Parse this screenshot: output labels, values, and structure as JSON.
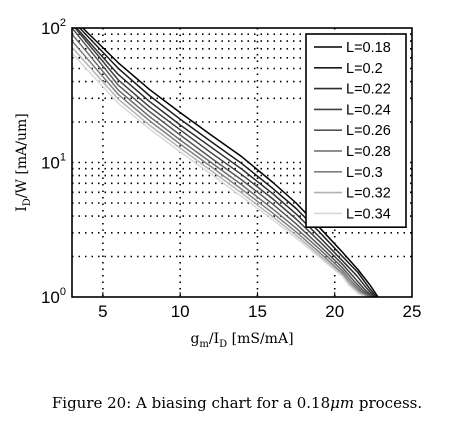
{
  "chart_data": {
    "type": "line",
    "title": "",
    "xlabel": "g_m/I_D [mS/mA]",
    "ylabel": "I_D/W [mA/um]",
    "xlim": [
      3,
      25
    ],
    "ylim": [
      1,
      100
    ],
    "yscale": "log",
    "grid": true,
    "legend_position": "top-right",
    "x_ticks": [
      "5",
      "10",
      "15",
      "20",
      "25"
    ],
    "y_ticks": [
      "10^0",
      "10^1",
      "10^2"
    ],
    "series": [
      {
        "name": "L=0.18",
        "color": "#000000",
        "x": [
          3.7,
          6,
          8,
          10,
          12,
          14,
          16,
          17.5,
          19,
          20.5,
          21.5,
          22.3,
          22.8
        ],
        "y": [
          100,
          55,
          35,
          23.5,
          16,
          11,
          7.1,
          5,
          3.3,
          2.15,
          1.6,
          1.22,
          1.0
        ]
      },
      {
        "name": "L=0.2",
        "color": "#1a1a1a",
        "x": [
          3.5,
          6,
          8,
          10,
          12,
          14,
          16,
          17.5,
          19,
          20.5,
          21.5,
          22.2,
          22.7
        ],
        "y": [
          100,
          50,
          31.5,
          21,
          14.3,
          9.8,
          6.4,
          4.55,
          3.05,
          2.0,
          1.52,
          1.18,
          1.0
        ]
      },
      {
        "name": "L=0.22",
        "color": "#2e2e2e",
        "x": [
          3.3,
          6,
          8,
          10,
          12,
          14,
          16,
          17.5,
          19,
          20.5,
          21.4,
          22.1,
          22.6
        ],
        "y": [
          100,
          45,
          28.5,
          19,
          13,
          8.9,
          5.85,
          4.15,
          2.8,
          1.86,
          1.45,
          1.15,
          1.0
        ]
      },
      {
        "name": "L=0.24",
        "color": "#424242",
        "x": [
          3.2,
          6,
          8,
          10,
          12,
          14,
          16,
          17.5,
          19,
          20.5,
          21.3,
          22.0,
          22.5
        ],
        "y": [
          100,
          41,
          26,
          17.5,
          11.8,
          8.1,
          5.35,
          3.8,
          2.6,
          1.75,
          1.38,
          1.12,
          1.0
        ]
      },
      {
        "name": "L=0.26",
        "color": "#565656",
        "x": [
          3.0,
          6,
          8,
          10,
          12,
          14,
          16,
          17.5,
          19,
          20.5,
          21.2,
          21.9,
          22.4
        ],
        "y": [
          100,
          37.5,
          24,
          16,
          10.8,
          7.4,
          4.9,
          3.5,
          2.42,
          1.65,
          1.33,
          1.1,
          1.0
        ]
      },
      {
        "name": "L=0.28",
        "color": "#6b6b6b",
        "x": [
          3.0,
          6,
          8,
          10,
          12,
          14,
          16,
          17.5,
          19,
          20.5,
          21.1,
          21.8,
          22.3
        ],
        "y": [
          90,
          34.5,
          22,
          14.7,
          10,
          6.8,
          4.5,
          3.25,
          2.28,
          1.57,
          1.3,
          1.09,
          1.0
        ]
      },
      {
        "name": "L=0.3",
        "color": "#7f7f7f",
        "x": [
          3.0,
          6,
          8,
          10,
          12,
          14,
          16,
          17.5,
          19,
          20.5,
          21.0,
          21.7,
          22.2
        ],
        "y": [
          80,
          32,
          20.5,
          13.7,
          9.3,
          6.3,
          4.2,
          3.05,
          2.15,
          1.5,
          1.27,
          1.08,
          1.0
        ]
      },
      {
        "name": "L=0.32",
        "color": "#b3b3b3",
        "x": [
          3.0,
          6,
          8,
          10,
          12,
          14,
          16,
          17.5,
          19,
          20.5,
          21.0,
          21.6,
          22.1
        ],
        "y": [
          72,
          29.5,
          19,
          12.8,
          8.7,
          5.9,
          3.95,
          2.88,
          2.05,
          1.45,
          1.24,
          1.07,
          1.0
        ]
      },
      {
        "name": "L=0.34",
        "color": "#d9d9d9",
        "x": [
          3.0,
          6,
          8,
          10,
          12,
          14,
          16,
          17.5,
          19,
          20.5,
          20.9,
          21.5,
          22.0
        ],
        "y": [
          65,
          27.5,
          17.8,
          12,
          8.2,
          5.55,
          3.75,
          2.75,
          1.98,
          1.42,
          1.23,
          1.06,
          1.0
        ]
      }
    ]
  },
  "caption": {
    "prefix": "Figure 20: A biasing chart for a 0.18",
    "unit": "μm",
    "suffix": " process."
  }
}
